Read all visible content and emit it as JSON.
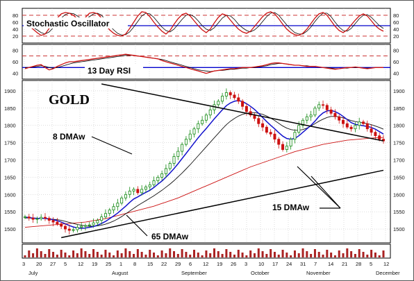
{
  "chart_data": {
    "type": "line",
    "title": "GOLD",
    "colors": {
      "up": "#118811",
      "down": "#cc1111",
      "ma8": "#1111cc",
      "ma15": "#111111",
      "ma65": "#cc1111",
      "trend": "#000000",
      "grid": "#bbbbbb",
      "frame": "#000000",
      "dash": "#cc3333",
      "mid": "#0000cc"
    },
    "stochastic": {
      "label": "Stochastic Oscillator",
      "ticks": [
        80,
        60,
        40,
        20
      ],
      "ylim": [
        0,
        100
      ],
      "reference_lines": [
        20,
        50,
        80
      ],
      "k": [
        52,
        48,
        40,
        30,
        22,
        26,
        42,
        58,
        72,
        84,
        88,
        86,
        80,
        70,
        62,
        74,
        86,
        88,
        84,
        72,
        52,
        38,
        28,
        22,
        20,
        26,
        42,
        60,
        78,
        90,
        88,
        76,
        60,
        46,
        34,
        26,
        36,
        54,
        70,
        82,
        86,
        78,
        64,
        50,
        38,
        30,
        40,
        58,
        74,
        84,
        80,
        66,
        52,
        40,
        32,
        28,
        34,
        48,
        62,
        76,
        86,
        90,
        84,
        70,
        54,
        40,
        30,
        24,
        22,
        28,
        40,
        56,
        72,
        84,
        88,
        80,
        64,
        48,
        36,
        30,
        38,
        52,
        66,
        78,
        84,
        78,
        64,
        50,
        40,
        34
      ],
      "d": [
        50,
        50,
        45,
        38,
        30,
        26,
        32,
        44,
        58,
        72,
        82,
        86,
        85,
        78,
        70,
        68,
        76,
        84,
        86,
        80,
        66,
        50,
        38,
        28,
        23,
        24,
        32,
        46,
        62,
        78,
        86,
        84,
        74,
        60,
        46,
        36,
        32,
        40,
        54,
        68,
        80,
        82,
        76,
        64,
        50,
        40,
        36,
        44,
        58,
        72,
        80,
        78,
        68,
        54,
        44,
        36,
        32,
        38,
        48,
        62,
        76,
        86,
        88,
        80,
        66,
        52,
        40,
        30,
        26,
        26,
        34,
        46,
        62,
        76,
        86,
        86,
        76,
        60,
        46,
        36,
        34,
        42,
        56,
        70,
        80,
        82,
        74,
        62,
        50,
        42
      ]
    },
    "rsi": {
      "label": "13 Day RSI",
      "ticks": [
        80,
        60,
        40
      ],
      "ylim": [
        30,
        90
      ],
      "reference_lines": [
        50,
        70
      ],
      "values": [
        48,
        50,
        52,
        54,
        55,
        50,
        46,
        48,
        52,
        55,
        58,
        60,
        60,
        61,
        62,
        63,
        64,
        65,
        66,
        67,
        68,
        69,
        70,
        71,
        72,
        73,
        72,
        71,
        70,
        69,
        68,
        67,
        66,
        65,
        62,
        60,
        58,
        56,
        54,
        52,
        50,
        48,
        46,
        44,
        42,
        40,
        42,
        44,
        45,
        46,
        47,
        48,
        48,
        49,
        50,
        50,
        50,
        51,
        52,
        53,
        55,
        57,
        58,
        58,
        57,
        56,
        55,
        54,
        54,
        53,
        52,
        52,
        52,
        51,
        50,
        49,
        48,
        47,
        48,
        49,
        50,
        50,
        51,
        50,
        49,
        48,
        49,
        50,
        50,
        50
      ],
      "signal": [
        50,
        50,
        51,
        52,
        53,
        52,
        50,
        49,
        50,
        52,
        54,
        56,
        58,
        59,
        60,
        61,
        62,
        63,
        64,
        65,
        66,
        67,
        68,
        69,
        70,
        71,
        71,
        71,
        70,
        69,
        68,
        67,
        66,
        65,
        64,
        62,
        60,
        58,
        56,
        54,
        52,
        50,
        48,
        46,
        45,
        44,
        43,
        44,
        45,
        45,
        46,
        47,
        47,
        48,
        49,
        49,
        50,
        50,
        51,
        52,
        53,
        55,
        56,
        57,
        57,
        56,
        55,
        54,
        54,
        53,
        53,
        52,
        52,
        51,
        50,
        50,
        49,
        48,
        48,
        49,
        49,
        50,
        50,
        50,
        49,
        49,
        49,
        50,
        50,
        50
      ]
    },
    "price": {
      "ylim": [
        1460,
        1930
      ],
      "ticks": [
        1900,
        1850,
        1800,
        1750,
        1700,
        1650,
        1600,
        1550,
        1500
      ],
      "close": [
        1535,
        1532,
        1528,
        1530,
        1534,
        1531,
        1525,
        1520,
        1515,
        1508,
        1500,
        1496,
        1498,
        1505,
        1508,
        1510,
        1512,
        1518,
        1525,
        1535,
        1545,
        1555,
        1565,
        1575,
        1590,
        1600,
        1610,
        1615,
        1605,
        1615,
        1622,
        1628,
        1640,
        1650,
        1660,
        1675,
        1690,
        1710,
        1725,
        1745,
        1760,
        1775,
        1790,
        1805,
        1815,
        1830,
        1845,
        1860,
        1870,
        1885,
        1895,
        1888,
        1880,
        1870,
        1855,
        1840,
        1830,
        1820,
        1805,
        1795,
        1780,
        1775,
        1760,
        1745,
        1730,
        1740,
        1760,
        1780,
        1800,
        1815,
        1825,
        1830,
        1850,
        1860,
        1858,
        1845,
        1835,
        1825,
        1815,
        1805,
        1795,
        1790,
        1800,
        1810,
        1805,
        1790,
        1780,
        1770,
        1760,
        1755
      ],
      "ma8": [
        1535,
        1533,
        1532,
        1531,
        1531,
        1531,
        1529,
        1527,
        1524,
        1520,
        1515,
        1510,
        1506,
        1503,
        1502,
        1503,
        1505,
        1507,
        1511,
        1516,
        1522,
        1530,
        1538,
        1546,
        1556,
        1566,
        1577,
        1587,
        1593,
        1600,
        1606,
        1612,
        1620,
        1630,
        1639,
        1650,
        1662,
        1675,
        1689,
        1704,
        1719,
        1734,
        1749,
        1764,
        1778,
        1791,
        1805,
        1819,
        1832,
        1845,
        1857,
        1865,
        1870,
        1872,
        1869,
        1863,
        1855,
        1846,
        1835,
        1823,
        1811,
        1800,
        1790,
        1779,
        1769,
        1762,
        1760,
        1762,
        1770,
        1780,
        1790,
        1800,
        1812,
        1826,
        1836,
        1842,
        1843,
        1840,
        1834,
        1826,
        1817,
        1808,
        1803,
        1801,
        1799,
        1797,
        1794,
        1789,
        1782,
        1775
      ],
      "ma15": [
        1532,
        1532,
        1531,
        1531,
        1531,
        1530,
        1529,
        1528,
        1527,
        1525,
        1522,
        1519,
        1516,
        1513,
        1511,
        1509,
        1508,
        1508,
        1509,
        1511,
        1514,
        1518,
        1523,
        1529,
        1536,
        1544,
        1552,
        1560,
        1568,
        1575,
        1582,
        1589,
        1596,
        1604,
        1612,
        1621,
        1630,
        1640,
        1651,
        1662,
        1674,
        1686,
        1699,
        1712,
        1725,
        1738,
        1751,
        1764,
        1777,
        1790,
        1802,
        1812,
        1820,
        1827,
        1832,
        1835,
        1837,
        1837,
        1835,
        1832,
        1827,
        1821,
        1814,
        1806,
        1798,
        1792,
        1788,
        1786,
        1786,
        1788,
        1792,
        1798,
        1805,
        1812,
        1818,
        1823,
        1826,
        1826,
        1825,
        1822,
        1818,
        1814,
        1811,
        1809,
        1807,
        1805,
        1802,
        1798,
        1794,
        1789
      ],
      "ma65": [
        1505,
        1506,
        1507,
        1508,
        1509,
        1510,
        1511,
        1512,
        1513,
        1514,
        1515,
        1516,
        1517,
        1518,
        1519,
        1520,
        1522,
        1524,
        1526,
        1528,
        1530,
        1533,
        1536,
        1539,
        1542,
        1545,
        1548,
        1551,
        1554,
        1557,
        1560,
        1563,
        1566,
        1570,
        1574,
        1578,
        1582,
        1586,
        1590,
        1595,
        1600,
        1605,
        1610,
        1615,
        1620,
        1625,
        1630,
        1635,
        1640,
        1645,
        1650,
        1655,
        1660,
        1665,
        1670,
        1675,
        1680,
        1684,
        1688,
        1692,
        1696,
        1700,
        1704,
        1708,
        1712,
        1716,
        1720,
        1724,
        1727,
        1730,
        1733,
        1736,
        1739,
        1742,
        1745,
        1747,
        1749,
        1751,
        1753,
        1755,
        1757,
        1758,
        1759,
        1760,
        1761,
        1762,
        1763,
        1764,
        1764,
        1765
      ]
    },
    "trendlines": [
      {
        "from": {
          "i": 19,
          "v": 1920
        },
        "to": {
          "i": 89,
          "v": 1755
        }
      },
      {
        "from": {
          "i": 9,
          "v": 1475
        },
        "to": {
          "i": 89,
          "v": 1670
        }
      }
    ],
    "annotations": [
      {
        "text": "8 DMAw"
      },
      {
        "text": "15 DMAw"
      },
      {
        "text": "65 DMAw"
      }
    ],
    "x_ticks": [
      "3",
      "20",
      "27",
      "5",
      "12",
      "19",
      "25",
      "1",
      "8",
      "15",
      "22",
      "29",
      "6",
      "12",
      "19",
      "26",
      "3",
      "10",
      "17",
      "24",
      "31",
      "7",
      "14",
      "21",
      "28",
      "5",
      "12"
    ],
    "x_months": [
      "July",
      "August",
      "September",
      "October",
      "November",
      "December"
    ]
  }
}
